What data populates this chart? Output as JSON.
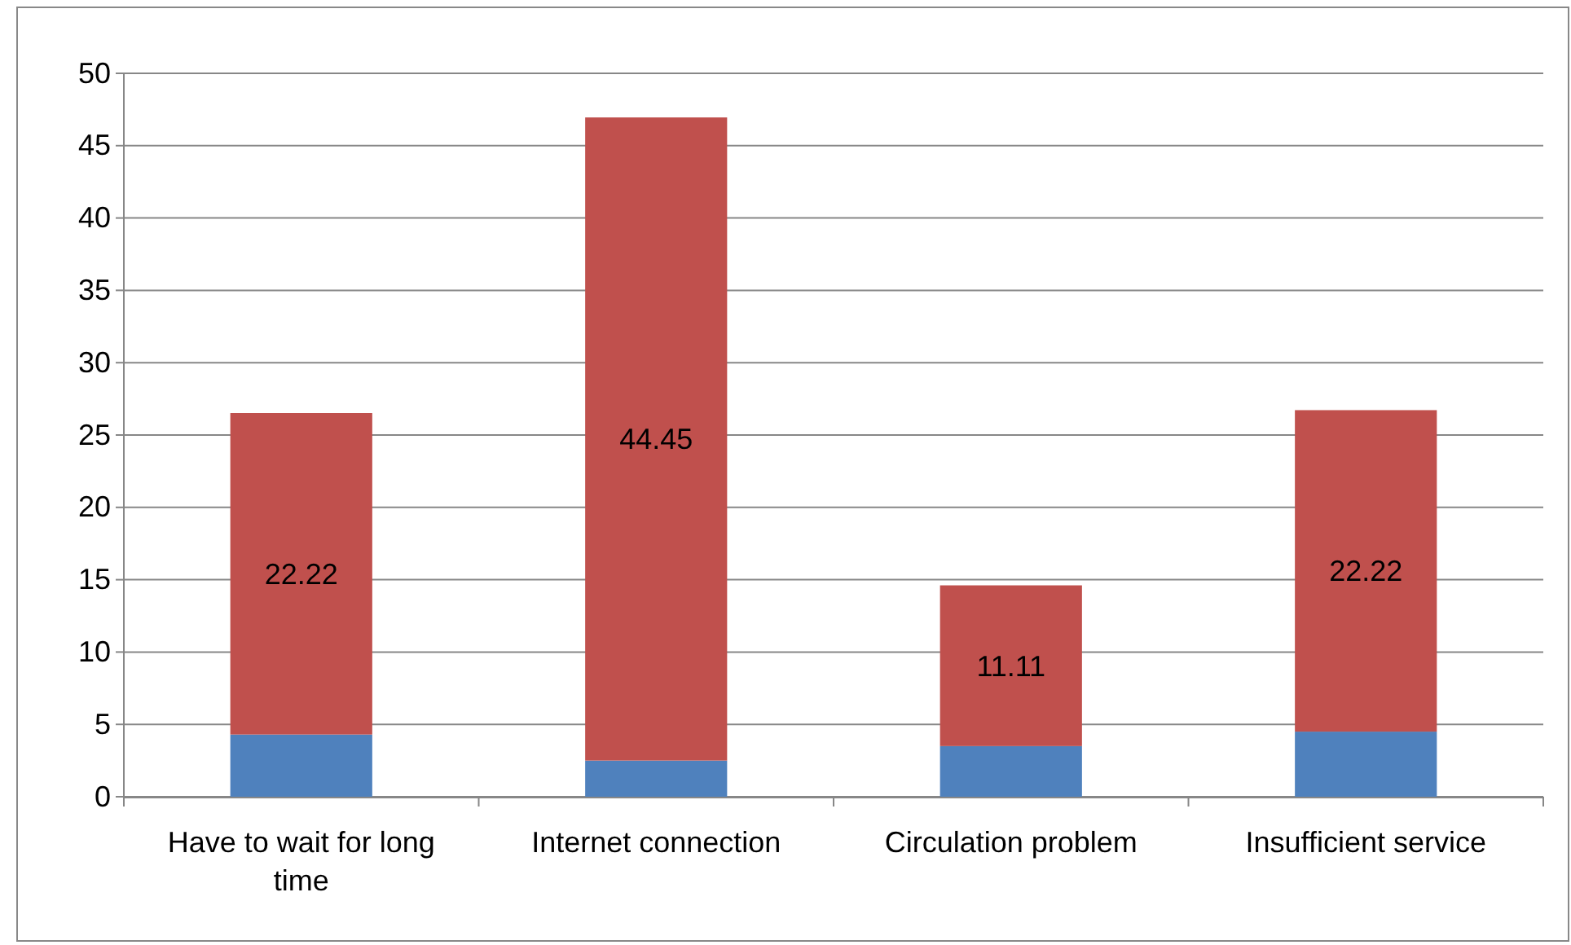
{
  "chart_data": {
    "type": "bar",
    "stacked": true,
    "categories": [
      "Have to wait for long time",
      "Internet connection",
      "Circulation problem",
      "Insufficient service"
    ],
    "series": [
      {
        "color": "#4f81bd",
        "values": [
          4.3,
          2.5,
          3.5,
          4.5
        ]
      },
      {
        "color": "#c0504d",
        "values": [
          22.22,
          44.45,
          11.11,
          22.22
        ],
        "value_labels": [
          "22.22",
          "44.45",
          "11.11",
          "22.22"
        ]
      }
    ],
    "ylim": [
      0,
      50
    ],
    "yticks": [
      0,
      5,
      10,
      15,
      20,
      25,
      30,
      35,
      40,
      45,
      50
    ],
    "grid": "y"
  }
}
